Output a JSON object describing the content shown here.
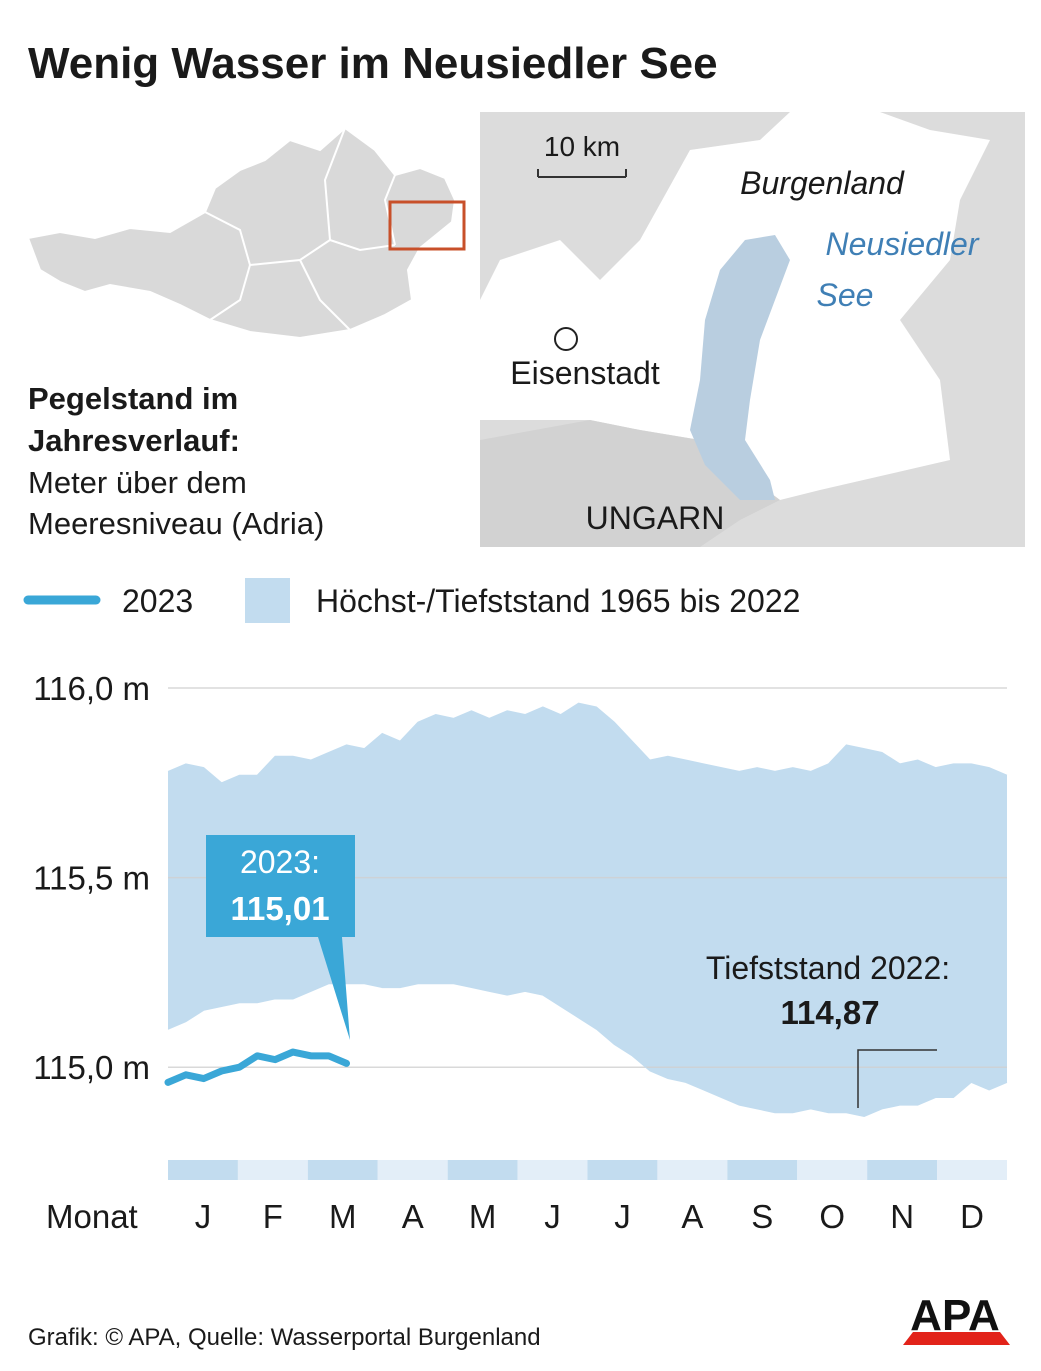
{
  "header": {
    "title": "Wenig Wasser im Neusiedler See"
  },
  "map": {
    "scale": "10 km",
    "region": "Burgenland",
    "lake": [
      "Neusiedler",
      "See"
    ],
    "city": "Eisenstadt",
    "country": "UNGARN"
  },
  "subtitle": {
    "bold": [
      "Pegelstand im",
      "Jahresverlauf:"
    ],
    "normal": [
      "Meter über dem",
      "Meeresniveau (Adria)"
    ]
  },
  "chart_data": {
    "type": "line",
    "x_label": "Monat",
    "categories": [
      "J",
      null,
      null,
      null,
      "F",
      null,
      null,
      null,
      "M",
      null,
      null,
      null,
      "A",
      null,
      null,
      null,
      "M",
      null,
      null,
      null,
      "J",
      null,
      null,
      null,
      "J",
      null,
      null,
      null,
      "A",
      null,
      null,
      null,
      "S",
      null,
      null,
      null,
      "O",
      null,
      null,
      null,
      "N",
      null,
      null,
      null,
      "D",
      null,
      null,
      null
    ],
    "series": [
      {
        "name": "2023",
        "color": "#3aa7d7",
        "values": [
          114.96,
          114.98,
          114.97,
          114.99,
          115.0,
          115.03,
          115.02,
          115.04,
          115.03,
          115.03,
          115.01,
          null,
          null,
          null,
          null,
          null,
          null,
          null,
          null,
          null,
          null,
          null,
          null,
          null,
          null,
          null,
          null,
          null,
          null,
          null,
          null,
          null,
          null,
          null,
          null,
          null,
          null,
          null,
          null,
          null,
          null,
          null,
          null,
          null,
          null,
          null,
          null,
          null
        ]
      }
    ],
    "band": {
      "name": "Höchst-/Tiefststand 1965 bis 2022",
      "color": "#c2dcef",
      "high": [
        115.78,
        115.8,
        115.79,
        115.75,
        115.77,
        115.77,
        115.82,
        115.82,
        115.81,
        115.83,
        115.85,
        115.84,
        115.88,
        115.86,
        115.91,
        115.93,
        115.92,
        115.94,
        115.92,
        115.94,
        115.93,
        115.95,
        115.93,
        115.96,
        115.95,
        115.91,
        115.86,
        115.81,
        115.82,
        115.81,
        115.8,
        115.79,
        115.78,
        115.79,
        115.78,
        115.79,
        115.78,
        115.8,
        115.85,
        115.84,
        115.83,
        115.8,
        115.81,
        115.79,
        115.8,
        115.8,
        115.79,
        115.77
      ],
      "low": [
        115.1,
        115.12,
        115.15,
        115.16,
        115.17,
        115.17,
        115.18,
        115.18,
        115.2,
        115.22,
        115.22,
        115.22,
        115.21,
        115.21,
        115.22,
        115.22,
        115.22,
        115.21,
        115.2,
        115.19,
        115.2,
        115.19,
        115.16,
        115.13,
        115.1,
        115.06,
        115.03,
        114.99,
        114.97,
        114.96,
        114.94,
        114.92,
        114.9,
        114.89,
        114.88,
        114.88,
        114.89,
        114.88,
        114.88,
        114.87,
        114.89,
        114.9,
        114.9,
        114.92,
        114.92,
        114.96,
        114.94,
        114.96
      ]
    },
    "ylim": [
      114.75,
      116.0
    ],
    "yticks": [
      {
        "value": 115.0,
        "label": "115,0 m"
      },
      {
        "value": 115.5,
        "label": "115,5 m"
      },
      {
        "value": 116.0,
        "label": "116,0 m"
      }
    ],
    "grid": true,
    "annotations": [
      {
        "lines": [
          "2023:",
          "115,01"
        ]
      },
      {
        "lines": [
          "Tiefststand 2022:",
          "114,87"
        ]
      }
    ]
  },
  "footer": {
    "source": "Grafik: © APA, Quelle: Wasserportal Burgenland",
    "logo": "APA"
  }
}
